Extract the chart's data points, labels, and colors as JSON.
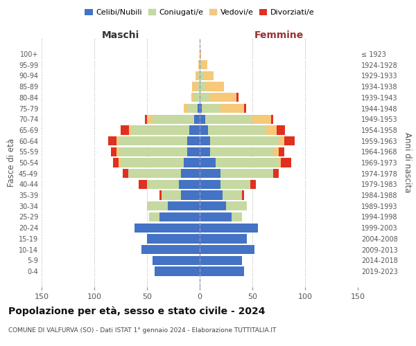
{
  "age_groups": [
    "0-4",
    "5-9",
    "10-14",
    "15-19",
    "20-24",
    "25-29",
    "30-34",
    "35-39",
    "40-44",
    "45-49",
    "50-54",
    "55-59",
    "60-64",
    "65-69",
    "70-74",
    "75-79",
    "80-84",
    "85-89",
    "90-94",
    "95-99",
    "100+"
  ],
  "birth_years": [
    "2019-2023",
    "2014-2018",
    "2009-2013",
    "2004-2008",
    "1999-2003",
    "1994-1998",
    "1989-1993",
    "1984-1988",
    "1979-1983",
    "1974-1978",
    "1969-1973",
    "1964-1968",
    "1959-1963",
    "1954-1958",
    "1949-1953",
    "1944-1948",
    "1939-1943",
    "1934-1938",
    "1929-1933",
    "1924-1928",
    "≤ 1923"
  ],
  "male": {
    "celibi": [
      43,
      45,
      55,
      50,
      62,
      38,
      30,
      18,
      20,
      18,
      15,
      12,
      12,
      10,
      5,
      2,
      0,
      0,
      0,
      0,
      0
    ],
    "coniugati": [
      0,
      0,
      0,
      0,
      0,
      10,
      20,
      18,
      30,
      50,
      60,
      65,
      65,
      55,
      40,
      10,
      5,
      2,
      1,
      0,
      0
    ],
    "vedovi": [
      0,
      0,
      0,
      0,
      0,
      0,
      0,
      0,
      0,
      0,
      2,
      2,
      2,
      2,
      5,
      3,
      3,
      5,
      3,
      1,
      0
    ],
    "divorziati": [
      0,
      0,
      0,
      0,
      0,
      0,
      0,
      2,
      8,
      5,
      5,
      5,
      8,
      8,
      2,
      0,
      0,
      0,
      0,
      0,
      0
    ]
  },
  "female": {
    "nubili": [
      42,
      40,
      52,
      45,
      55,
      30,
      25,
      22,
      20,
      20,
      15,
      10,
      10,
      8,
      5,
      2,
      0,
      0,
      0,
      0,
      0
    ],
    "coniugate": [
      0,
      0,
      0,
      0,
      0,
      10,
      20,
      18,
      28,
      50,
      60,
      60,
      65,
      55,
      45,
      18,
      10,
      5,
      3,
      2,
      0
    ],
    "vedove": [
      0,
      0,
      0,
      0,
      0,
      0,
      0,
      0,
      0,
      0,
      2,
      5,
      5,
      10,
      18,
      22,
      25,
      18,
      10,
      5,
      1
    ],
    "divorziate": [
      0,
      0,
      0,
      0,
      0,
      0,
      0,
      2,
      5,
      5,
      10,
      5,
      10,
      8,
      2,
      2,
      2,
      0,
      0,
      0,
      0
    ]
  },
  "colors": {
    "celibi": "#4472c4",
    "coniugati": "#c5d9a0",
    "vedovi": "#f5c87a",
    "divorziati": "#e03020"
  },
  "xlim": 150,
  "title": "Popolazione per età, sesso e stato civile - 2024",
  "subtitle": "COMUNE DI VALFURVA (SO) - Dati ISTAT 1° gennaio 2024 - Elaborazione TUTTITALIA.IT",
  "ylabel_left": "Fasce di età",
  "ylabel_right": "Anni di nascita",
  "xlabel_left": "Maschi",
  "xlabel_right": "Femmine",
  "legend_labels": [
    "Celibi/Nubili",
    "Coniugati/e",
    "Vedovi/e",
    "Divorziati/e"
  ],
  "bg_color": "#ffffff",
  "grid_color": "#bbbbbb",
  "femmine_color": "#993333",
  "maschi_color": "#333333"
}
